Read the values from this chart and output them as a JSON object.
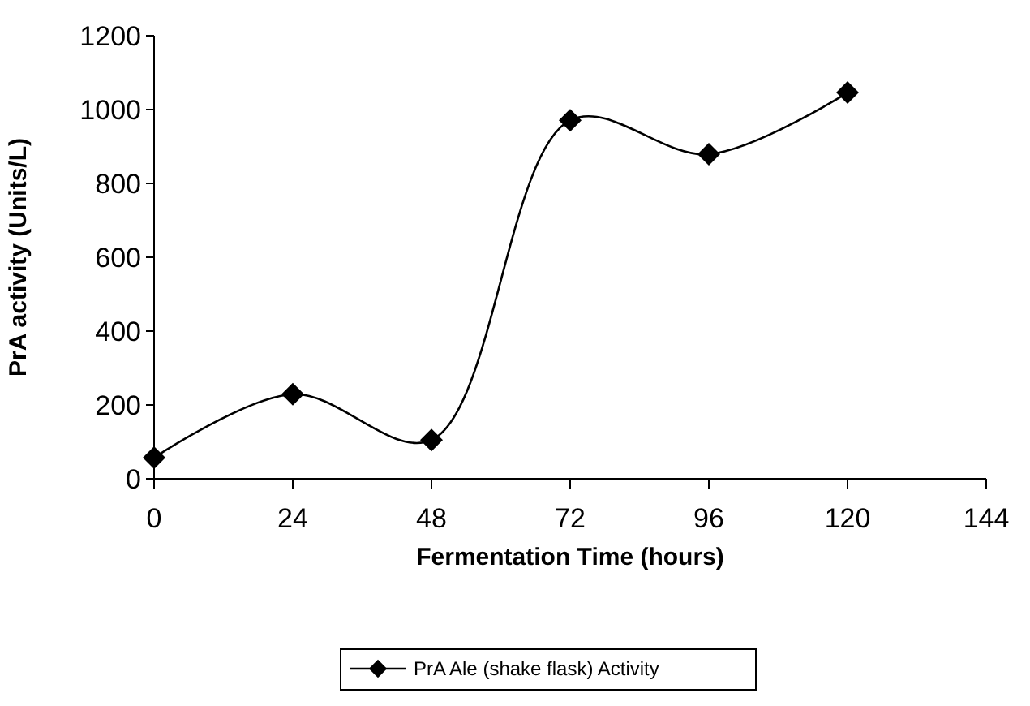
{
  "chart_data": {
    "type": "line",
    "xlabel": "Fermentation Time (hours)",
    "ylabel": "PrA activity (Units/L)",
    "x": [
      0,
      24,
      48,
      72,
      96,
      120
    ],
    "series": [
      {
        "name": "PrA  Ale (shake flask) Activity",
        "color": "#000000",
        "values": [
          57,
          229,
          105,
          971,
          879,
          1046
        ]
      }
    ],
    "xlim": [
      0,
      144
    ],
    "xticks": [
      0,
      24,
      48,
      72,
      96,
      120,
      144
    ],
    "ylim": [
      0,
      1200
    ],
    "yticks": [
      0,
      200,
      400,
      600,
      800,
      1000,
      1200
    ],
    "grid": false,
    "legend": "bottom",
    "marker": "diamond",
    "line_style": "solid"
  }
}
